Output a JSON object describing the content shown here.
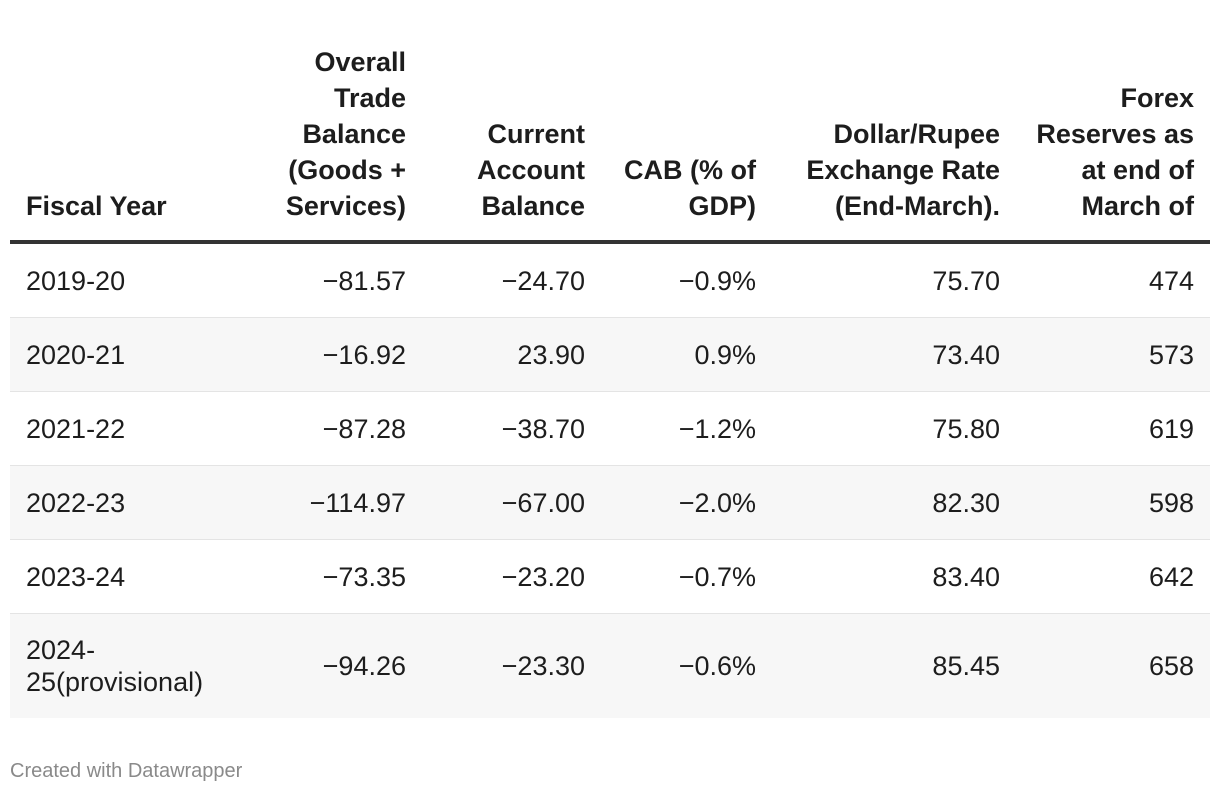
{
  "chart_data": {
    "type": "table",
    "columns": [
      "Fiscal Year",
      "Overall Trade Balance (Goods + Services)",
      "Current Account Balance",
      "CAB (% of GDP)",
      "Dollar/Rupee Exchange Rate (End-March).",
      "Forex Reserves as at end of March of"
    ],
    "rows": [
      [
        "2019-20",
        "−81.57",
        "−24.70",
        "−0.9%",
        "75.70",
        "474"
      ],
      [
        "2020-21",
        "−16.92",
        "23.90",
        "0.9%",
        "73.40",
        "573"
      ],
      [
        "2021-22",
        "−87.28",
        "−38.70",
        "−1.2%",
        "75.80",
        "619"
      ],
      [
        "2022-23",
        "−114.97",
        "−67.00",
        "−2.0%",
        "82.30",
        "598"
      ],
      [
        "2023-24",
        "−73.35",
        "−23.20",
        "−0.7%",
        "83.40",
        "642"
      ],
      [
        "2024-25(provisional)",
        "−94.26",
        "−23.30",
        "−0.6%",
        "85.45",
        "658"
      ]
    ]
  },
  "footer": {
    "credit": "Created with Datawrapper"
  }
}
